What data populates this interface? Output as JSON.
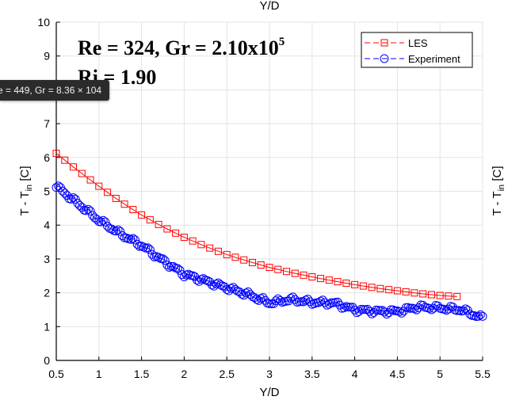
{
  "chart_data": {
    "type": "line",
    "top_label": "Y/D",
    "xlabel": "Y/D",
    "ylabel_main": "T - T",
    "ylabel_sub": "in",
    "ylabel_tail": " [C]",
    "xlim": [
      0.5,
      5.5
    ],
    "ylim": [
      0,
      10
    ],
    "xticks": [
      0.5,
      1,
      1.5,
      2,
      2.5,
      3,
      3.5,
      4,
      4.5,
      5,
      5.5
    ],
    "xtick_labels": [
      "0.5",
      "1",
      "1.5",
      "2",
      "2.5",
      "3",
      "3.5",
      "4",
      "4.5",
      "5",
      "5.5"
    ],
    "yticks": [
      0,
      1,
      2,
      3,
      4,
      5,
      6,
      7,
      8,
      9,
      10
    ],
    "ytick_labels": [
      "0",
      "1",
      "2",
      "3",
      "4",
      "5",
      "6",
      "7",
      "8",
      "9",
      "10"
    ],
    "grid": true,
    "legend_position": "top-right",
    "annotation_line1_base": "Re = 324, Gr = 2.10x10",
    "annotation_line1_exp": "5",
    "annotation_line2": "Ri = 1.90",
    "series": [
      {
        "name": "LES",
        "color": "#ff0000",
        "marker": "square",
        "x": [
          0.5,
          0.75,
          1.0,
          1.25,
          1.5,
          1.75,
          2.0,
          2.25,
          2.5,
          2.75,
          3.0,
          3.25,
          3.5,
          3.75,
          4.0,
          4.25,
          4.5,
          4.75,
          5.0,
          5.25
        ],
        "y": [
          6.12,
          5.62,
          5.15,
          4.7,
          4.3,
          3.95,
          3.64,
          3.37,
          3.13,
          2.93,
          2.75,
          2.6,
          2.47,
          2.35,
          2.24,
          2.14,
          2.06,
          1.98,
          1.92,
          1.88
        ]
      },
      {
        "name": "Experiment",
        "color": "#0000ff",
        "marker": "circle",
        "x": [
          0.5,
          0.75,
          1.0,
          1.25,
          1.5,
          1.75,
          2.0,
          2.25,
          2.5,
          2.75,
          3.0,
          3.25,
          3.5,
          3.75,
          4.0,
          4.25,
          4.5,
          4.75,
          5.0,
          5.25,
          5.5
        ],
        "y": [
          5.15,
          4.65,
          4.15,
          3.75,
          3.4,
          2.95,
          2.55,
          2.35,
          2.15,
          1.95,
          1.7,
          1.8,
          1.72,
          1.7,
          1.5,
          1.45,
          1.45,
          1.58,
          1.55,
          1.5,
          1.25
        ]
      }
    ]
  },
  "tooltip": {
    "text": "e = 449, Gr = 8.36 × 104"
  }
}
